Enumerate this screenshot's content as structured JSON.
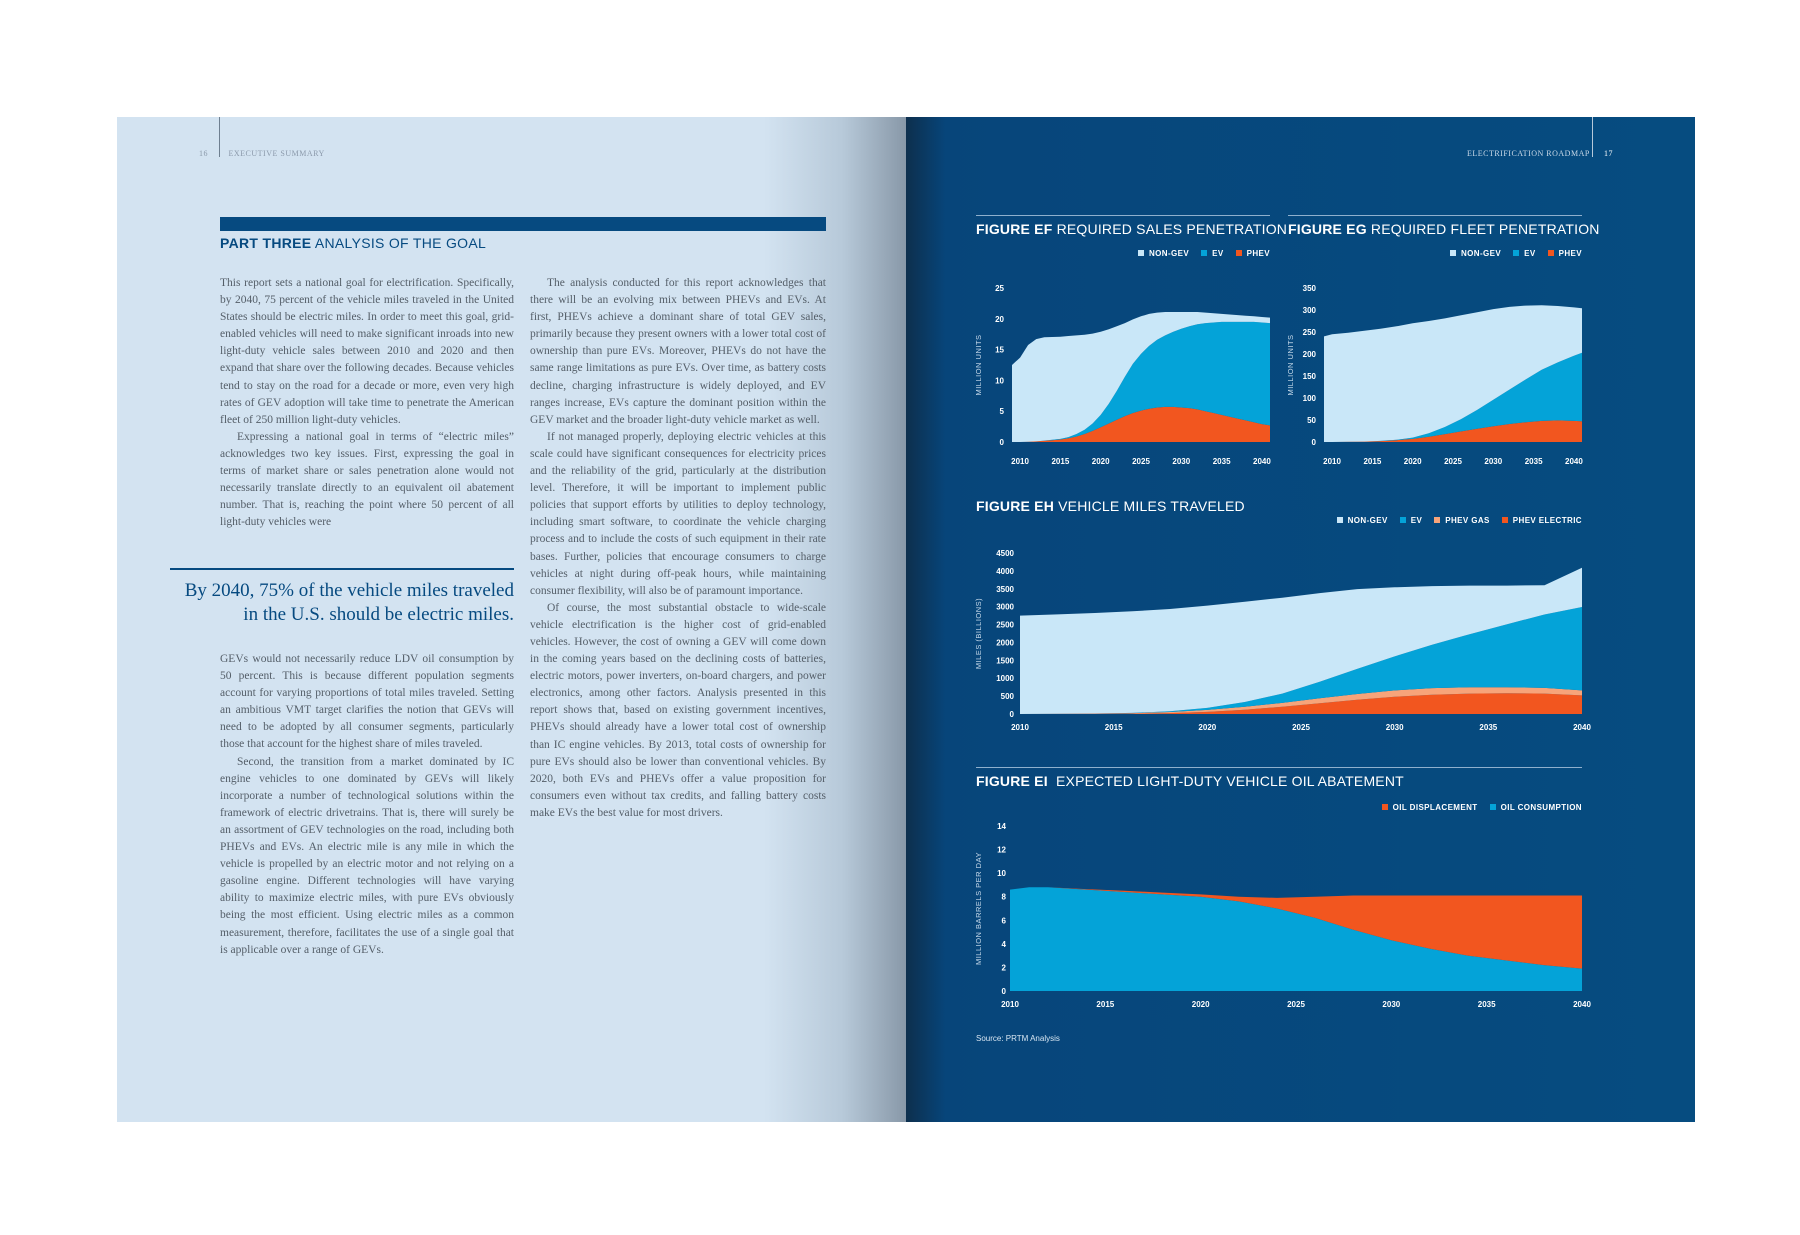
{
  "left_page": {
    "folio_number": "16",
    "folio_label": "EXECUTIVE SUMMARY",
    "section": {
      "part": "PART THREE",
      "title": "ANALYSIS OF THE GOAL"
    },
    "col1a": [
      "This report sets a national goal for electrification. Specifically, by 2040, 75 percent of the vehicle miles traveled in the United States should be electric miles. In order to meet this goal, grid-enabled vehicles will need to make significant inroads into new light-duty vehicle sales between 2010 and 2020 and then expand that share over the following decades. Because vehicles tend to stay on the road for a decade or more, even very high rates of GEV adoption will take time to penetrate the American fleet of 250 million light-duty vehicles.",
      "Expressing a national goal in terms of “electric miles” acknowledges two key issues. First, expressing the goal in terms of market share or sales penetration alone would not necessarily translate directly to an equivalent oil abatement number. That is, reaching the point where 50 percent of all light-duty vehicles were"
    ],
    "pull_quote": "By 2040, 75% of the vehicle miles traveled in the U.S. should be electric miles.",
    "col1b": [
      "GEVs would not necessarily reduce LDV oil consumption by 50 percent. This is because different population segments account for varying proportions of total miles traveled. Setting an ambitious VMT target clarifies the notion that GEVs will need to be adopted by all consumer segments, particularly those that account for the highest share of miles traveled.",
      "Second, the transition from a market dominated by IC engine vehicles to one dominated by GEVs will likely incorporate a number of technological solutions within the framework of electric drivetrains. That is, there will surely be an assortment of GEV technologies on the road, including both PHEVs and EVs. An electric mile is any mile in which the vehicle is propelled by an electric motor and not relying on a gasoline engine. Different technologies will have varying ability to maximize electric miles, with pure EVs obviously being the most efficient. Using electric miles as a common measurement, therefore, facilitates the use of a single goal that is applicable over a range of GEVs."
    ],
    "col2": [
      "The analysis conducted for this report acknowledges that there will be an evolving mix between PHEVs and EVs. At first, PHEVs achieve a dominant share of total GEV sales, primarily because they present owners with a lower total cost of ownership than pure EVs. Moreover, PHEVs do not have the same range limitations as pure EVs. Over time, as battery costs decline, charging infrastructure is widely deployed, and EV ranges increase, EVs capture the dominant position within the GEV market and the broader light-duty vehicle market as well.",
      "If not managed properly, deploying electric vehicles at this scale could have significant consequences for electricity prices and the reliability of the grid, particularly at the distribution level. Therefore, it will be important to implement public policies that support efforts by utilities to deploy technology, including smart software, to coordinate the vehicle charging process and to include the costs of such equipment in their rate bases. Further, policies that encourage consumers to charge vehicles at night during off-peak hours, while maintaining consumer flexibility, will also be of paramount importance.",
      "Of course, the most substantial obstacle to wide-scale vehicle electrification is the higher cost of grid-enabled vehicles. However, the cost of owning a GEV will come down in the coming years based on the declining costs of batteries, electric motors, power inverters, on-board chargers, and power electronics, among other factors. Analysis presented in this report shows that, based on existing government incentives, PHEVs should already have a lower total cost of ownership than IC engine vehicles. By 2013, total costs of ownership for pure EVs should also be lower than conventional vehicles. By 2020, both EVs and PHEVs offer a value proposition for consumers even without tax credits, and falling battery costs make EVs the best value for most drivers."
    ]
  },
  "right_page": {
    "folio_label": "ELECTRIFICATION ROADMAP",
    "folio_number": "17",
    "source": "Source: PRTM Analysis"
  },
  "colors": {
    "non_gev": "#c9e7f8",
    "ev": "#04a3d8",
    "phev": "#f2561f",
    "phev_gas": "#f7a47a",
    "page_blue": "#064a80",
    "text_blue": "#064a80"
  },
  "chart_data": [
    {
      "id": "ef",
      "type": "area",
      "stacked": true,
      "figure_label": "FIGURE EF",
      "title": "REQUIRED SALES PENETRATION",
      "ylabel": "MILLION UNITS",
      "ylim": [
        0,
        25
      ],
      "yticks": [
        0,
        5,
        10,
        15,
        20,
        25
      ],
      "xticks": [
        2010,
        2015,
        2020,
        2025,
        2030,
        2035,
        2040
      ],
      "legend_position": "top-right",
      "x": [
        2009,
        2010,
        2011,
        2012,
        2013,
        2014,
        2015,
        2016,
        2017,
        2018,
        2019,
        2020,
        2021,
        2022,
        2023,
        2024,
        2025,
        2026,
        2027,
        2028,
        2029,
        2030,
        2031,
        2032,
        2033,
        2034,
        2035,
        2036,
        2037,
        2038,
        2039,
        2040,
        2041
      ],
      "series": [
        {
          "name": "PHEV",
          "color": "#f2561f",
          "values": [
            0,
            0,
            0.05,
            0.1,
            0.2,
            0.3,
            0.4,
            0.6,
            0.9,
            1.3,
            1.8,
            2.4,
            3.0,
            3.6,
            4.2,
            4.7,
            5.1,
            5.4,
            5.6,
            5.7,
            5.7,
            5.6,
            5.5,
            5.3,
            5.0,
            4.7,
            4.4,
            4.1,
            3.8,
            3.5,
            3.2,
            2.9,
            2.7
          ]
        },
        {
          "name": "EV",
          "color": "#04a3d8",
          "values": [
            0,
            0,
            0,
            0,
            0.02,
            0.05,
            0.1,
            0.2,
            0.4,
            0.7,
            1.2,
            2.0,
            3.2,
            4.7,
            6.4,
            8.0,
            9.2,
            10.2,
            11.0,
            11.6,
            12.2,
            12.8,
            13.3,
            13.8,
            14.3,
            14.7,
            15.1,
            15.4,
            15.7,
            16.0,
            16.3,
            16.5,
            16.6
          ]
        },
        {
          "name": "NON-GEV",
          "color": "#c9e7f8",
          "values": [
            12.5,
            13.7,
            15.7,
            16.6,
            16.8,
            16.7,
            16.6,
            16.4,
            16.0,
            15.4,
            14.6,
            13.5,
            12.1,
            10.5,
            8.7,
            7.2,
            6.1,
            5.2,
            4.4,
            3.8,
            3.2,
            2.7,
            2.3,
            2.0,
            1.7,
            1.5,
            1.3,
            1.2,
            1.1,
            1.0,
            0.9,
            0.9,
            0.9
          ]
        }
      ]
    },
    {
      "id": "eg",
      "type": "area",
      "stacked": true,
      "figure_label": "FIGURE EG",
      "title": "REQUIRED FLEET PENETRATION",
      "ylabel": "MILLION UNITS",
      "ylim": [
        0,
        350
      ],
      "yticks": [
        0,
        50,
        100,
        150,
        200,
        250,
        300,
        350
      ],
      "xticks": [
        2010,
        2015,
        2020,
        2025,
        2030,
        2035,
        2040
      ],
      "legend_position": "top-right",
      "x": [
        2009,
        2010,
        2012,
        2014,
        2016,
        2018,
        2020,
        2022,
        2024,
        2026,
        2028,
        2030,
        2032,
        2034,
        2036,
        2038,
        2040,
        2041
      ],
      "series": [
        {
          "name": "PHEV",
          "color": "#f2561f",
          "values": [
            0,
            0,
            0.5,
            1,
            2,
            4,
            7,
            12,
            18,
            24,
            30,
            36,
            41,
            45,
            48,
            49,
            48,
            47
          ]
        },
        {
          "name": "EV",
          "color": "#04a3d8",
          "values": [
            0,
            0,
            0,
            0,
            0.5,
            1,
            3,
            8,
            16,
            28,
            43,
            60,
            78,
            97,
            116,
            132,
            148,
            156
          ]
        },
        {
          "name": "NON-GEV",
          "color": "#c9e7f8",
          "values": [
            240,
            245,
            248,
            252,
            255,
            258,
            260,
            255,
            247,
            236,
            222,
            206,
            188,
            168,
            147,
            128,
            110,
            101
          ]
        }
      ]
    },
    {
      "id": "eh",
      "type": "area",
      "stacked": true,
      "figure_label": "FIGURE EH",
      "title": "VEHICLE MILES TRAVELED",
      "ylabel": "MILES (BILLIONS)",
      "ylim": [
        0,
        4500
      ],
      "yticks": [
        0,
        500,
        1000,
        1500,
        2000,
        2500,
        3000,
        3500,
        4000,
        4500
      ],
      "xticks": [
        2010,
        2015,
        2020,
        2025,
        2030,
        2035,
        2040
      ],
      "legend_position": "top-right",
      "x": [
        2010,
        2012,
        2014,
        2016,
        2018,
        2020,
        2022,
        2024,
        2026,
        2028,
        2030,
        2032,
        2034,
        2036,
        2038,
        2040
      ],
      "series": [
        {
          "name": "PHEV ELECTRIC",
          "color": "#f2561f",
          "values": [
            0,
            2,
            5,
            10,
            25,
            60,
            120,
            200,
            300,
            400,
            480,
            540,
            570,
            580,
            570,
            520
          ]
        },
        {
          "name": "PHEV GAS",
          "color": "#f7a47a",
          "values": [
            0,
            3,
            8,
            15,
            30,
            55,
            85,
            110,
            140,
            160,
            180,
            185,
            180,
            170,
            160,
            140
          ]
        },
        {
          "name": "EV",
          "color": "#04a3d8",
          "values": [
            0,
            0,
            0,
            5,
            20,
            55,
            130,
            260,
            460,
            700,
            950,
            1210,
            1480,
            1760,
            2050,
            2330
          ]
        },
        {
          "name": "NON-GEV",
          "color": "#c9e7f8",
          "values": [
            2750,
            2780,
            2810,
            2840,
            2860,
            2860,
            2800,
            2680,
            2480,
            2230,
            1930,
            1640,
            1360,
            1080,
            820,
            1100
          ]
        }
      ]
    },
    {
      "id": "ei",
      "type": "area",
      "stacked": true,
      "figure_label": "FIGURE EI",
      "title": "EXPECTED LIGHT-DUTY VEHICLE OIL ABATEMENT",
      "ylabel": "MILLION BARRELS PER DAY",
      "ylim": [
        0,
        14
      ],
      "yticks": [
        0,
        2,
        4,
        6,
        8,
        10,
        12,
        14
      ],
      "xticks": [
        2010,
        2015,
        2020,
        2025,
        2030,
        2035,
        2040
      ],
      "legend_position": "top-right",
      "x": [
        2010,
        2011,
        2012,
        2014,
        2016,
        2018,
        2020,
        2022,
        2024,
        2026,
        2028,
        2030,
        2032,
        2034,
        2036,
        2038,
        2040
      ],
      "series": [
        {
          "name": "OIL CONSUMPTION",
          "color": "#04a3d8",
          "values": [
            8.6,
            8.8,
            8.8,
            8.6,
            8.4,
            8.2,
            8.0,
            7.6,
            7.0,
            6.2,
            5.2,
            4.3,
            3.6,
            3.0,
            2.6,
            2.2,
            1.9
          ]
        },
        {
          "name": "OIL DISPLACEMENT",
          "color": "#f2561f",
          "values": [
            0,
            0,
            0,
            0.05,
            0.1,
            0.15,
            0.2,
            0.4,
            0.9,
            1.8,
            2.9,
            3.8,
            4.5,
            5.1,
            5.5,
            5.9,
            6.2
          ]
        }
      ]
    }
  ]
}
